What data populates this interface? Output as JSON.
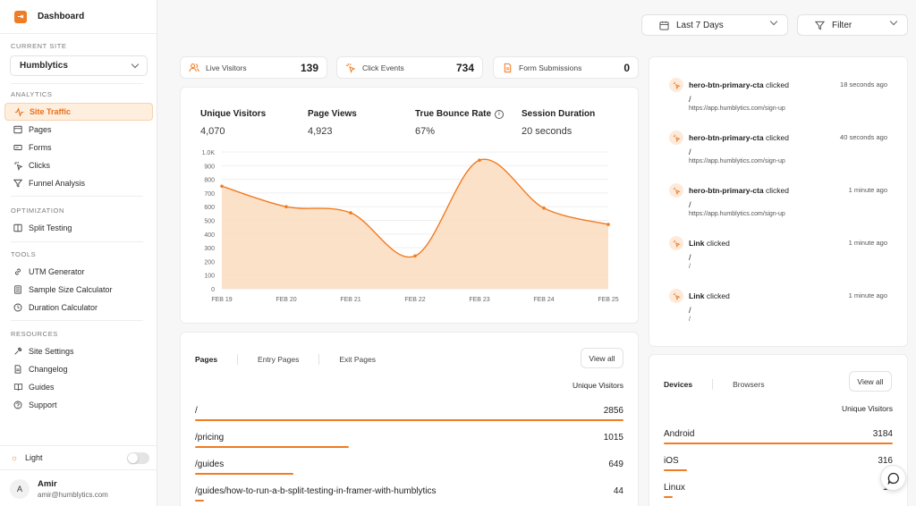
{
  "app": {
    "title": "Dashboard"
  },
  "sidebar": {
    "current_site_label": "CURRENT SITE",
    "current_site": "Humblytics",
    "sections": [
      {
        "label": "ANALYTICS",
        "items": [
          {
            "label": "Site Traffic",
            "icon": "activity-icon",
            "active": true
          },
          {
            "label": "Pages",
            "icon": "browser-icon"
          },
          {
            "label": "Forms",
            "icon": "form-icon"
          },
          {
            "label": "Clicks",
            "icon": "click-icon"
          },
          {
            "label": "Funnel Analysis",
            "icon": "funnel-icon"
          }
        ]
      },
      {
        "label": "OPTIMIZATION",
        "items": [
          {
            "label": "Split Testing",
            "icon": "split-icon"
          }
        ]
      },
      {
        "label": "TOOLS",
        "items": [
          {
            "label": "UTM Generator",
            "icon": "link-icon"
          },
          {
            "label": "Sample Size Calculator",
            "icon": "calculator-icon"
          },
          {
            "label": "Duration Calculator",
            "icon": "clock-icon"
          }
        ]
      },
      {
        "label": "RESOURCES",
        "items": [
          {
            "label": "Site Settings",
            "icon": "wrench-icon"
          },
          {
            "label": "Changelog",
            "icon": "document-icon"
          },
          {
            "label": "Guides",
            "icon": "book-icon"
          },
          {
            "label": "Support",
            "icon": "help-icon"
          }
        ]
      }
    ],
    "theme_label": "Light",
    "user": {
      "initial": "A",
      "name": "Amir",
      "email": "amir@humblytics.com"
    }
  },
  "toolbar": {
    "date_range": "Last 7 Days",
    "filter": "Filter"
  },
  "stats": [
    {
      "label": "Live Visitors",
      "value": "139",
      "icon": "users-icon"
    },
    {
      "label": "Click Events",
      "value": "734",
      "icon": "click-icon"
    },
    {
      "label": "Form Submissions",
      "value": "0",
      "icon": "document-icon"
    }
  ],
  "metrics": [
    {
      "label": "Unique Visitors",
      "value": "4,070"
    },
    {
      "label": "Page Views",
      "value": "4,923"
    },
    {
      "label": "True Bounce Rate",
      "value": "67%",
      "info": true
    },
    {
      "label": "Session Duration",
      "value": "20 seconds"
    }
  ],
  "chart_data": {
    "type": "area",
    "categories": [
      "FEB 19",
      "FEB 20",
      "FEB 21",
      "FEB 22",
      "FEB 23",
      "FEB 24",
      "FEB 25"
    ],
    "values": [
      750,
      600,
      555,
      240,
      940,
      590,
      470
    ],
    "ylim": [
      0,
      1000
    ],
    "yticks": [
      "0",
      "100",
      "200",
      "300",
      "400",
      "500",
      "600",
      "700",
      "800",
      "900",
      "1.0K"
    ],
    "grid": true,
    "color": "#f07c23"
  },
  "pages_panel": {
    "tabs": [
      "Pages",
      "Entry Pages",
      "Exit Pages"
    ],
    "view_all": "View all",
    "column": "Unique Visitors",
    "rows": [
      {
        "label": "/",
        "value": "2856",
        "fraction": 1.0
      },
      {
        "label": "/pricing",
        "value": "1015",
        "fraction": 0.36
      },
      {
        "label": "/guides",
        "value": "649",
        "fraction": 0.23
      },
      {
        "label": "/guides/how-to-run-a-b-split-testing-in-framer-with-humblytics",
        "value": "44",
        "fraction": 0.02
      }
    ]
  },
  "events": [
    {
      "name": "hero-btn-primary-cta",
      "action": "clicked",
      "time": "18 seconds ago",
      "path": "/",
      "url": "https://app.humblytics.com/sign-up"
    },
    {
      "name": "hero-btn-primary-cta",
      "action": "clicked",
      "time": "40 seconds ago",
      "path": "/",
      "url": "https://app.humblytics.com/sign-up"
    },
    {
      "name": "hero-btn-primary-cta",
      "action": "clicked",
      "time": "1 minute ago",
      "path": "/",
      "url": "https://app.humblytics.com/sign-up"
    },
    {
      "name": "Link",
      "action": "clicked",
      "time": "1 minute ago",
      "path": "/",
      "url": "/"
    },
    {
      "name": "Link",
      "action": "clicked",
      "time": "1 minute ago",
      "path": "/",
      "url": "/"
    }
  ],
  "devices_panel": {
    "tabs": [
      "Devices",
      "Browsers"
    ],
    "view_all": "View all",
    "column": "Unique Visitors",
    "rows": [
      {
        "label": "Android",
        "value": "3184",
        "fraction": 1.0
      },
      {
        "label": "iOS",
        "value": "316",
        "fraction": 0.1
      },
      {
        "label": "Linux",
        "value": "19",
        "fraction": 0.01
      }
    ]
  }
}
